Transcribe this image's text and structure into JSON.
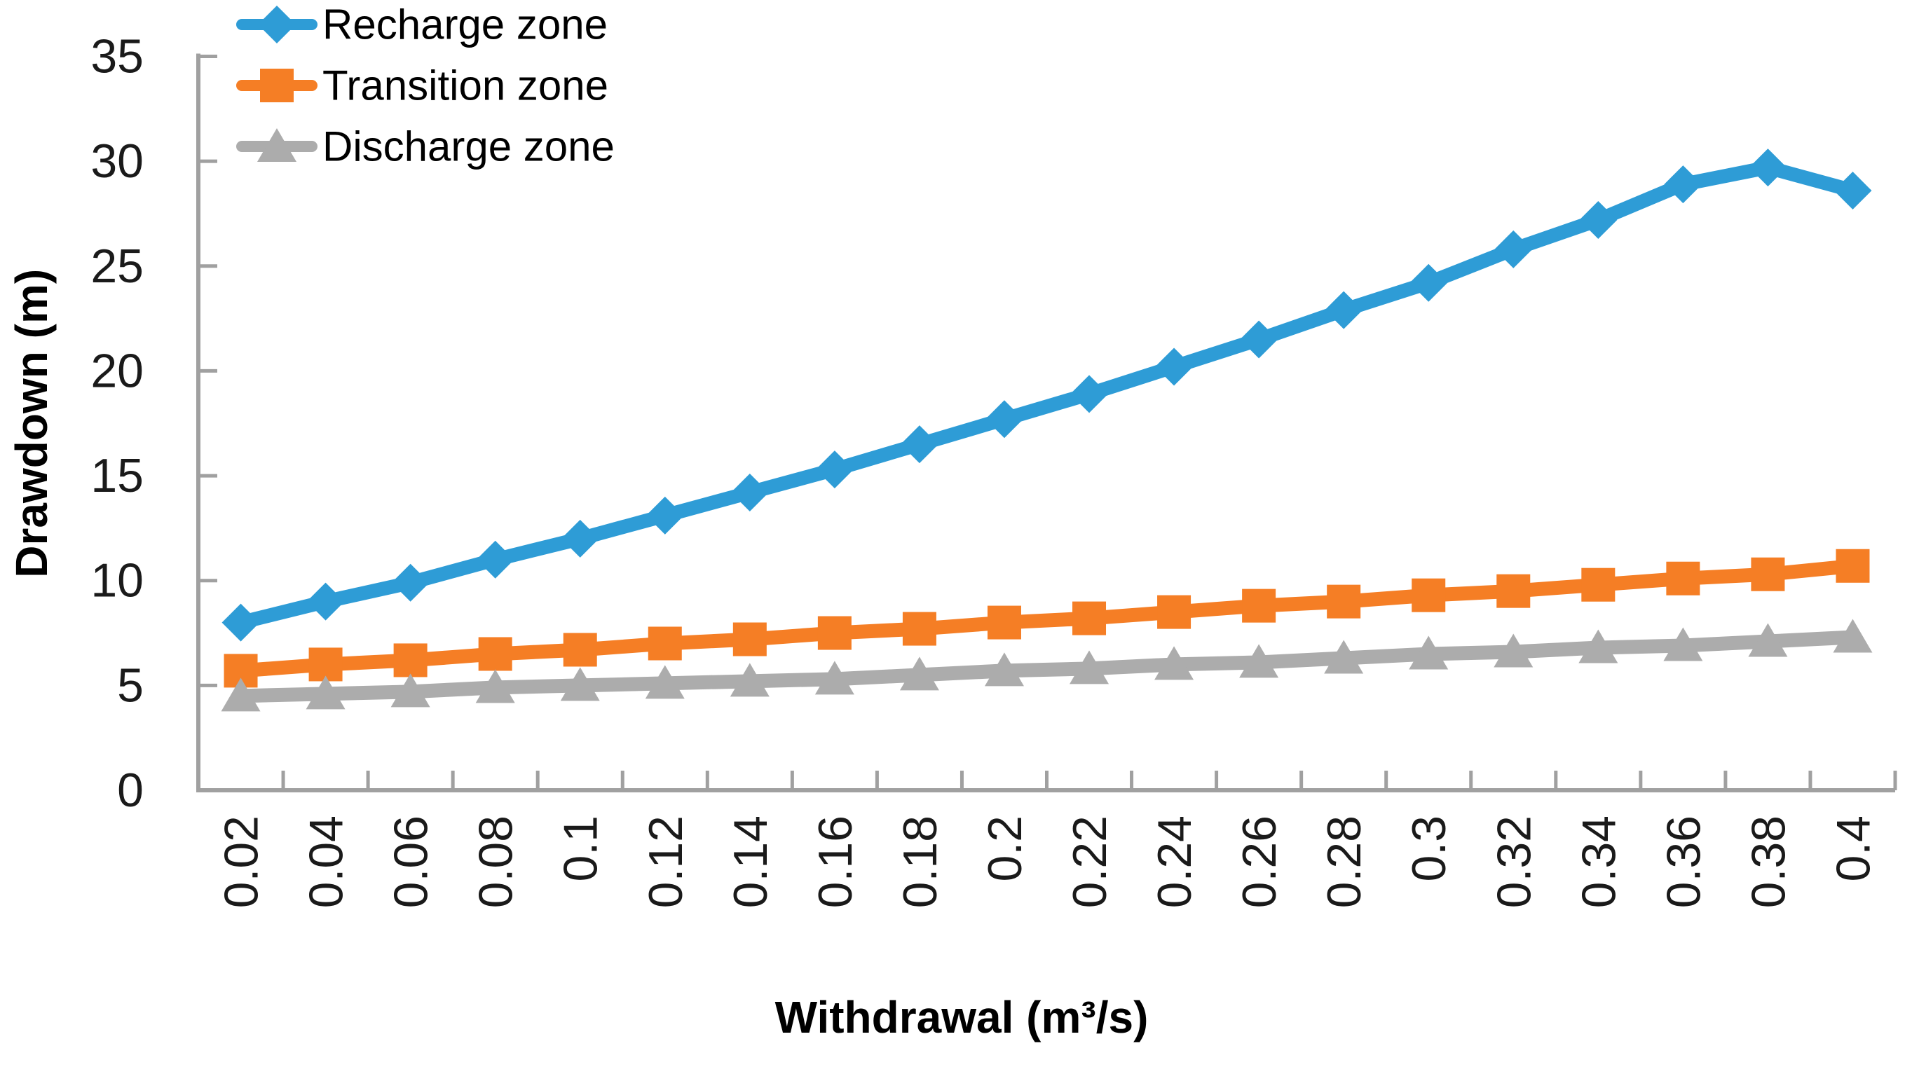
{
  "chart_data": {
    "type": "line",
    "title": "",
    "xlabel": "Withdrawal (m³/s)",
    "ylabel": "Drawdown (m)",
    "x_categories": [
      "0.02",
      "0.04",
      "0.06",
      "0.08",
      "0.1",
      "0.12",
      "0.14",
      "0.16",
      "0.18",
      "0.2",
      "0.22",
      "0.24",
      "0.26",
      "0.28",
      "0.3",
      "0.32",
      "0.34",
      "0.36",
      "0.38",
      "0.4"
    ],
    "y_ticks": [
      0,
      5,
      10,
      15,
      20,
      25,
      30,
      35
    ],
    "ylim": [
      0,
      35
    ],
    "grid": false,
    "legend_position": "top-left",
    "series": [
      {
        "name": "Recharge zone",
        "color": "#2E9CD6",
        "marker": "diamond",
        "values": [
          8.0,
          9.0,
          9.9,
          11.0,
          12.0,
          13.1,
          14.2,
          15.3,
          16.5,
          17.7,
          18.9,
          20.2,
          21.5,
          22.9,
          24.2,
          25.8,
          27.2,
          28.9,
          29.7,
          28.6
        ]
      },
      {
        "name": "Transition zone",
        "color": "#F57E25",
        "marker": "square",
        "values": [
          5.7,
          6.0,
          6.2,
          6.5,
          6.7,
          7.0,
          7.2,
          7.5,
          7.7,
          8.0,
          8.2,
          8.5,
          8.8,
          9.0,
          9.3,
          9.5,
          9.8,
          10.1,
          10.3,
          10.7
        ]
      },
      {
        "name": "Discharge zone",
        "color": "#ACACAC",
        "marker": "triangle",
        "values": [
          4.5,
          4.6,
          4.7,
          4.9,
          5.0,
          5.1,
          5.2,
          5.3,
          5.5,
          5.7,
          5.8,
          6.0,
          6.1,
          6.3,
          6.5,
          6.6,
          6.8,
          6.9,
          7.1,
          7.3
        ]
      }
    ]
  },
  "colors": {
    "axis": "#A0A0A0",
    "tick": "#A0A0A0",
    "text": "#1A1A1A"
  }
}
